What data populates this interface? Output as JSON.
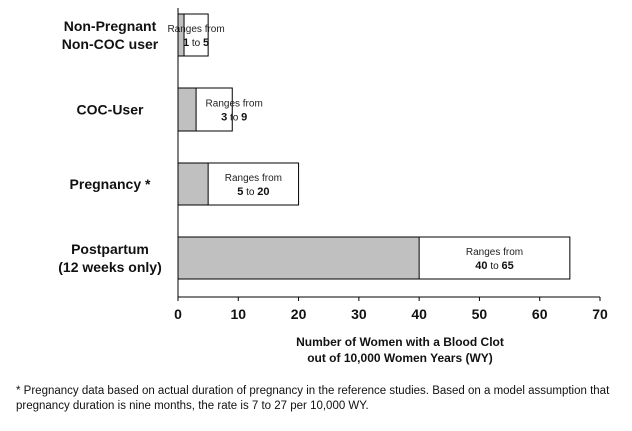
{
  "chart_data": {
    "type": "bar",
    "orientation": "horizontal",
    "categories": [
      [
        "Non-Pregnant",
        "Non-COC user"
      ],
      [
        "COC-User"
      ],
      [
        "Pregnancy *"
      ],
      [
        "Postpartum",
        "(12 weeks only)"
      ]
    ],
    "series": [
      {
        "values": [
          1,
          3,
          5,
          40
        ],
        "color": "#c0c0c0"
      },
      {
        "values": [
          5,
          9,
          20,
          65
        ],
        "color": "#ffffff"
      }
    ],
    "range_labels": [
      {
        "prefix": "Ranges from",
        "low": "1",
        "to": "to",
        "high": "5"
      },
      {
        "prefix": "Ranges from",
        "low": "3",
        "to": "to",
        "high": "9"
      },
      {
        "prefix": "Ranges from",
        "low": "5",
        "to": "to",
        "high": "20"
      },
      {
        "prefix": "Ranges from",
        "low": "40",
        "to": "to",
        "high": "65"
      }
    ],
    "xticks": [
      "0",
      "10",
      "20",
      "30",
      "40",
      "50",
      "60",
      "70"
    ],
    "xlim": [
      0,
      70
    ],
    "xlabel_lines": [
      "Number of Women with a  Blood Clot",
      "out of  10,000 Women Years (WY)"
    ],
    "grid": false,
    "legend": "none",
    "colors": {
      "low_fill": "#c0c0c0",
      "high_fill": "#ffffff",
      "edge": "#000000"
    }
  },
  "footnote": "* Pregnancy data based on actual duration of pregnancy in the reference studies. Based on a model assumption that pregnancy duration is nine months, the rate is 7 to 27 per 10,000 WY."
}
